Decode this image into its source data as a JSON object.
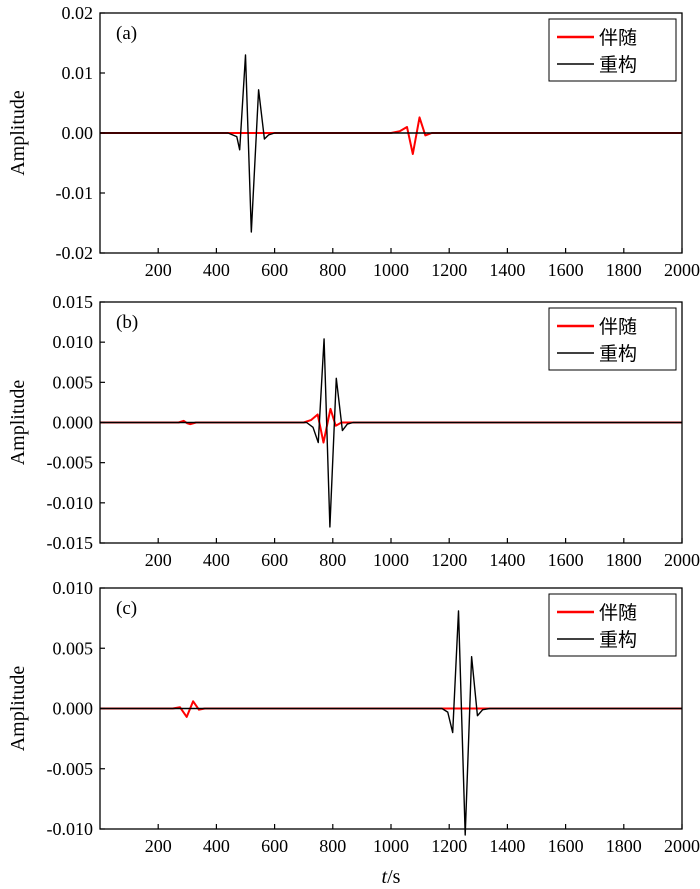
{
  "figure": {
    "xlabel_italic": "t",
    "xlabel_unit": "/s"
  },
  "chart_data": [
    {
      "type": "line",
      "panel_label": "(a)",
      "ylabel": "Amplitude",
      "xlim": [
        0,
        2000
      ],
      "ylim": [
        -0.02,
        0.02
      ],
      "x_ticks": [
        "200",
        "400",
        "600",
        "800",
        "1000",
        "1200",
        "1400",
        "1600",
        "1800",
        "2000"
      ],
      "y_ticks": [
        "0.02",
        "0.01",
        "0.00",
        "-0.01",
        "-0.02"
      ],
      "legend": {
        "position": "top-right",
        "items": [
          {
            "name": "伴随",
            "color": "#ff0000"
          },
          {
            "name": "重构",
            "color": "#000000"
          }
        ]
      },
      "series": [
        {
          "name": "伴随",
          "color": "#ff0000",
          "x": [
            0,
            1000,
            1030,
            1055,
            1075,
            1098,
            1118,
            1140,
            2000
          ],
          "y": [
            0,
            0,
            0.0003,
            0.001,
            -0.0035,
            0.0026,
            -0.0004,
            0,
            0
          ]
        },
        {
          "name": "重构",
          "color": "#000000",
          "x": [
            0,
            440,
            470,
            480,
            500,
            520,
            545,
            565,
            580,
            600,
            2000
          ],
          "y": [
            0,
            0,
            -0.0006,
            -0.0028,
            0.013,
            -0.0165,
            0.0072,
            -0.001,
            -0.0003,
            0,
            0
          ]
        }
      ]
    },
    {
      "type": "line",
      "panel_label": "(b)",
      "ylabel": "Amplitude",
      "xlim": [
        0,
        2000
      ],
      "ylim": [
        -0.015,
        0.015
      ],
      "x_ticks": [
        "200",
        "400",
        "600",
        "800",
        "1000",
        "1200",
        "1400",
        "1600",
        "1800",
        "2000"
      ],
      "y_ticks": [
        "0.015",
        "0.010",
        "0.005",
        "0.000",
        "-0.005",
        "-0.010",
        "-0.015"
      ],
      "legend": {
        "position": "top-right",
        "items": [
          {
            "name": "伴随",
            "color": "#ff0000"
          },
          {
            "name": "重构",
            "color": "#000000"
          }
        ]
      },
      "series": [
        {
          "name": "伴随",
          "color": "#ff0000",
          "x": [
            0,
            270,
            288,
            300,
            310,
            330,
            700,
            725,
            748,
            768,
            792,
            810,
            830,
            2000
          ],
          "y": [
            0,
            0,
            0.0002,
            -0.0001,
            -0.0002,
            0,
            0,
            0.0003,
            0.001,
            -0.0025,
            0.0017,
            -0.0004,
            0,
            0
          ]
        },
        {
          "name": "重构",
          "color": "#000000",
          "x": [
            0,
            710,
            732,
            750,
            770,
            790,
            812,
            833,
            850,
            870,
            2000
          ],
          "y": [
            0,
            0,
            -0.0006,
            -0.0025,
            0.0104,
            -0.013,
            0.0055,
            -0.001,
            -0.0002,
            0,
            0
          ]
        }
      ]
    },
    {
      "type": "line",
      "panel_label": "(c)",
      "ylabel": "Amplitude",
      "xlim": [
        0,
        2000
      ],
      "ylim": [
        -0.01,
        0.01
      ],
      "x_ticks": [
        "200",
        "400",
        "600",
        "800",
        "1000",
        "1200",
        "1400",
        "1600",
        "1800",
        "2000"
      ],
      "y_ticks": [
        "0.010",
        "0.005",
        "0.000",
        "-0.005",
        "-0.010"
      ],
      "legend": {
        "position": "top-right",
        "items": [
          {
            "name": "伴随",
            "color": "#ff0000"
          },
          {
            "name": "重构",
            "color": "#000000"
          }
        ]
      },
      "series": [
        {
          "name": "伴随",
          "color": "#ff0000",
          "x": [
            0,
            250,
            275,
            298,
            320,
            340,
            360,
            2000
          ],
          "y": [
            0,
            0,
            0.0001,
            -0.0007,
            0.0006,
            -0.0001,
            0,
            0
          ]
        },
        {
          "name": "重构",
          "color": "#000000",
          "x": [
            0,
            1175,
            1195,
            1212,
            1232,
            1255,
            1277,
            1297,
            1315,
            1340,
            2000
          ],
          "y": [
            0,
            0,
            -0.0003,
            -0.002,
            0.0081,
            -0.0105,
            0.0043,
            -0.0006,
            -0.0001,
            0,
            0
          ]
        }
      ]
    }
  ]
}
